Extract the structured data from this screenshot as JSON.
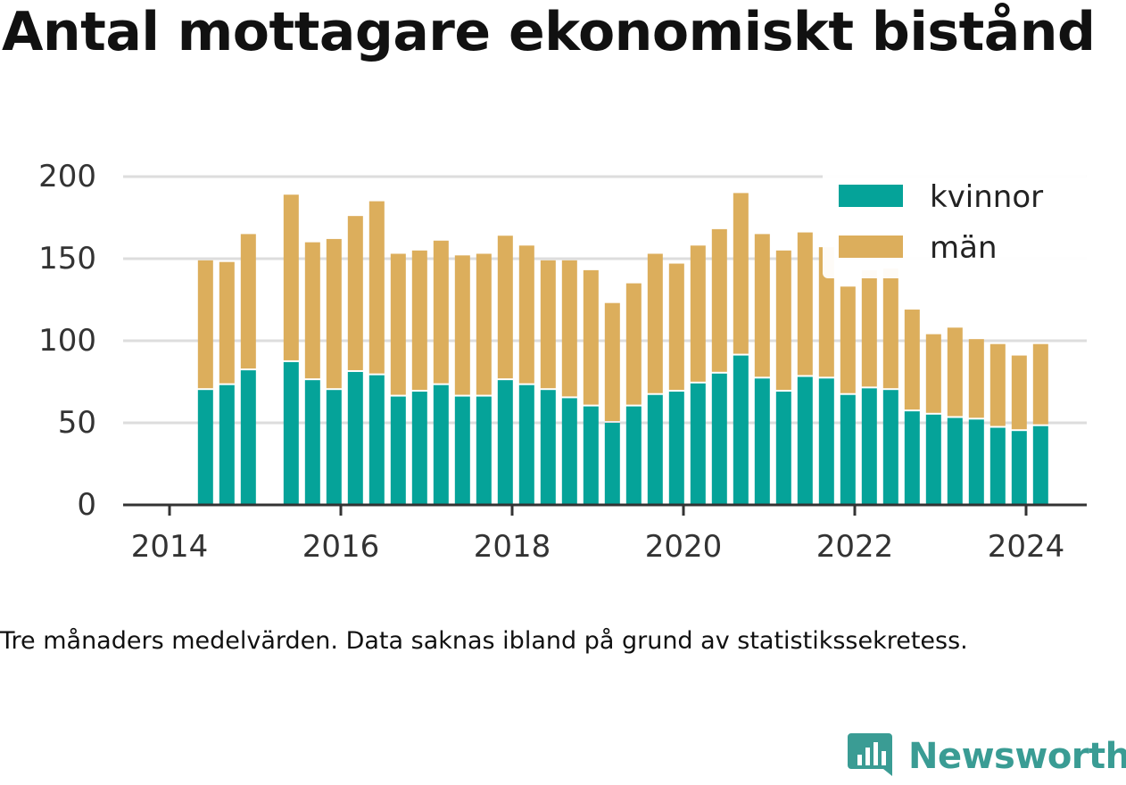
{
  "title": "Antal mottagare ekonomiskt bistånd",
  "caption": "Tre månaders medelvärden. Data saknas ibland på grund av statistikssekretess.",
  "brand": {
    "name": "Newsworthy",
    "icon": "bar-chart-speech-bubble-icon"
  },
  "colors": {
    "kvinnor": "#05a399",
    "man": "#dcae5c",
    "grid": "#dddddd",
    "axis": "#333333",
    "brand": "#3a9c94"
  },
  "chart_data": {
    "type": "bar",
    "stacked": true,
    "title": "Antal mottagare ekonomiskt bistånd",
    "xlabel": "",
    "ylabel": "",
    "ylim": [
      0,
      200
    ],
    "yticks": [
      "0",
      "50",
      "100",
      "150",
      "200"
    ],
    "xticks": [
      "2014",
      "2016",
      "2018",
      "2020",
      "2022",
      "2024"
    ],
    "xlim": [
      2014.0,
      2025.0
    ],
    "grid": "horizontal",
    "legend": "top-right",
    "x": [
      2014.42,
      2014.67,
      2014.92,
      2015.42,
      2015.67,
      2015.92,
      2016.17,
      2016.42,
      2016.67,
      2016.92,
      2017.17,
      2017.42,
      2017.67,
      2017.92,
      2018.17,
      2018.42,
      2018.67,
      2018.92,
      2019.17,
      2019.42,
      2019.67,
      2019.92,
      2020.17,
      2020.42,
      2020.67,
      2020.92,
      2021.17,
      2021.42,
      2021.67,
      2021.92,
      2022.17,
      2022.42,
      2022.67,
      2022.92,
      2023.17,
      2023.42,
      2023.67,
      2023.92,
      2024.17
    ],
    "series": [
      {
        "name": "kvinnor",
        "color": "#05a399",
        "values": [
          70,
          73,
          82,
          87,
          76,
          70,
          81,
          79,
          66,
          69,
          73,
          66,
          66,
          76,
          73,
          70,
          65,
          60,
          50,
          60,
          67,
          69,
          74,
          80,
          91,
          77,
          69,
          78,
          77,
          67,
          71,
          70,
          57,
          55,
          53,
          52,
          47,
          45,
          48
        ]
      },
      {
        "name": "män",
        "color": "#dcae5c",
        "values": [
          79,
          75,
          83,
          102,
          84,
          92,
          95,
          106,
          87,
          86,
          88,
          86,
          87,
          88,
          85,
          79,
          84,
          83,
          73,
          75,
          86,
          78,
          84,
          88,
          99,
          88,
          86,
          88,
          80,
          66,
          72,
          74,
          62,
          49,
          55,
          49,
          51,
          46,
          50
        ]
      }
    ]
  }
}
